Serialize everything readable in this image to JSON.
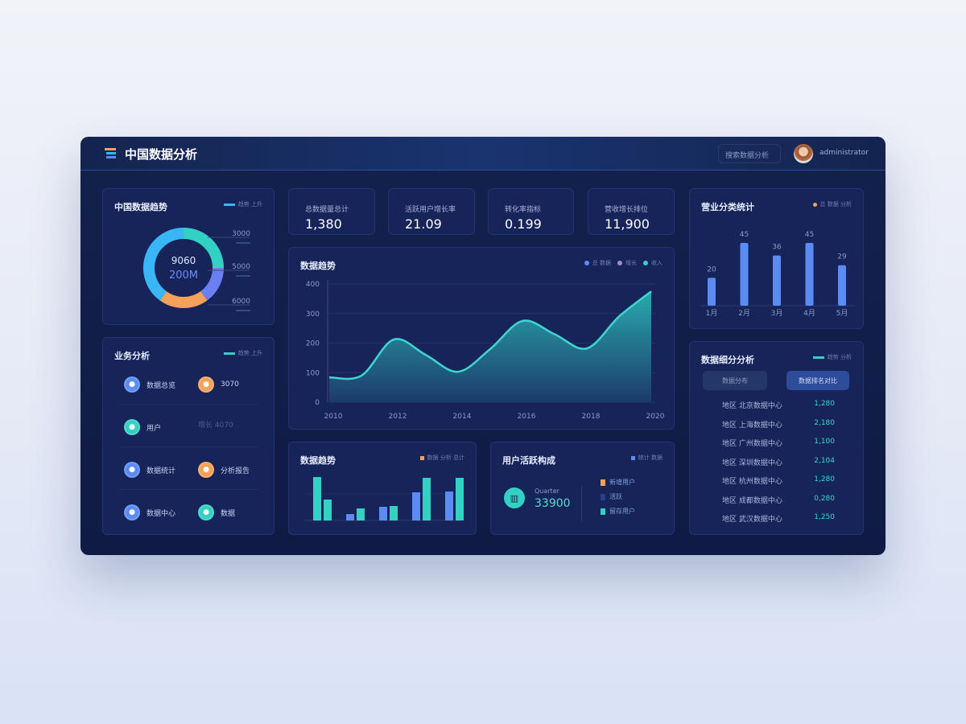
{
  "header": {
    "title": "中国数据分析",
    "search_placeholder": "搜索数据分析",
    "username": "administrator"
  },
  "colors": {
    "teal": "#33d1c3",
    "blue": "#5b8cf5",
    "sky": "#38b6f6",
    "orange": "#f4a259",
    "indigo": "#6b7ff0"
  },
  "donut": {
    "title": "中国数据趋势",
    "legend": "趋势 上升",
    "center_value": "9060",
    "center_sub": "200M",
    "segments": [
      {
        "value": 25,
        "color": "#33d1c3",
        "label": "3000"
      },
      {
        "value": 15,
        "color": "#6b7ff0",
        "label": "5000"
      },
      {
        "value": 20,
        "color": "#f4a259",
        "label": "6000"
      },
      {
        "value": 40,
        "color": "#38b6f6",
        "label": ""
      }
    ]
  },
  "kpis": [
    {
      "label": "总数据量总计",
      "value": "1,380"
    },
    {
      "label": "活跃用户增长率",
      "value": "21.09"
    },
    {
      "label": "转化率指标",
      "value": "0.199"
    },
    {
      "label": "营收增长排位",
      "value": "11,900"
    }
  ],
  "business": {
    "title": "业务分析",
    "legend": "趋势 上升",
    "items": [
      {
        "label": "数据总览",
        "icon": "chart-icon",
        "color": "#5b8cf5"
      },
      {
        "label": "3070",
        "icon": "bag-icon",
        "color": "#f4a259"
      },
      {
        "label": "用户",
        "icon": "users-icon",
        "color": "#33d1c3"
      },
      {
        "label": "增长 4070",
        "icon": "",
        "color": ""
      },
      {
        "label": "数据统计",
        "icon": "doc-icon",
        "color": "#5b8cf5"
      },
      {
        "label": "分析报告",
        "icon": "lock-icon",
        "color": "#f4a259"
      },
      {
        "label": "数据中心",
        "icon": "globe-icon",
        "color": "#5b8cf5"
      },
      {
        "label": "数据",
        "icon": "circle-icon",
        "color": "#33d1c3"
      }
    ]
  },
  "chart_data": [
    {
      "type": "area",
      "title": "数据趋势",
      "legend": [
        "总 数据",
        "增长",
        "收入"
      ],
      "x": [
        2010,
        2011,
        2012,
        2013,
        2014,
        2015,
        2016,
        2017,
        2018,
        2019,
        2020
      ],
      "values": [
        84,
        90,
        212,
        160,
        103,
        180,
        275,
        230,
        182,
        290,
        375
      ],
      "ylim": [
        0,
        400
      ],
      "yticks": [
        "400",
        "300",
        "200",
        "100",
        "0"
      ],
      "xticks": [
        "2010",
        "2012",
        "2014",
        "2016",
        "2018",
        "2020"
      ],
      "grid": true
    },
    {
      "type": "bar",
      "title": "营业分类统计",
      "legend": "总 数据 分析",
      "categories": [
        "1月",
        "2月",
        "3月",
        "4月",
        "5月"
      ],
      "values": [
        20,
        45,
        36,
        45,
        29
      ],
      "data_labels": [
        "20",
        "45",
        "36",
        "45",
        "29"
      ],
      "color": "#5b8cf5"
    },
    {
      "type": "bar",
      "title": "数据趋势",
      "legend": "数据 分析 总计",
      "series": [
        {
          "values": [
            54,
            8,
            17,
            35,
            36
          ]
        },
        {
          "values": [
            26,
            15,
            18,
            53,
            53
          ]
        }
      ],
      "colors": [
        "#5b8cf5",
        "#33d1c3"
      ]
    }
  ],
  "stat": {
    "title": "用户活跃构成",
    "legend": "统计 数据",
    "label": "Quarter",
    "value": "33900",
    "legend_items": [
      {
        "label": "新增用户",
        "color": "#f4a259"
      },
      {
        "label": "活跃",
        "color": "#2a3f8a"
      },
      {
        "label": "留存用户",
        "color": "#33d1c3"
      }
    ]
  },
  "ranking": {
    "title": "数据细分分析",
    "legend": "趋势 分析",
    "tabs": [
      "数据分布",
      "数据排名对比"
    ],
    "rows": [
      {
        "label": "地区 北京数据中心",
        "value": "1,280"
      },
      {
        "label": "地区 上海数据中心",
        "value": "2,180"
      },
      {
        "label": "地区 广州数据中心",
        "value": "1,100"
      },
      {
        "label": "地区 深圳数据中心",
        "value": "2,104"
      },
      {
        "label": "地区 杭州数据中心",
        "value": "1,280"
      },
      {
        "label": "地区 成都数据中心",
        "value": "0,280"
      },
      {
        "label": "地区 武汉数据中心",
        "value": "1,250"
      }
    ]
  }
}
